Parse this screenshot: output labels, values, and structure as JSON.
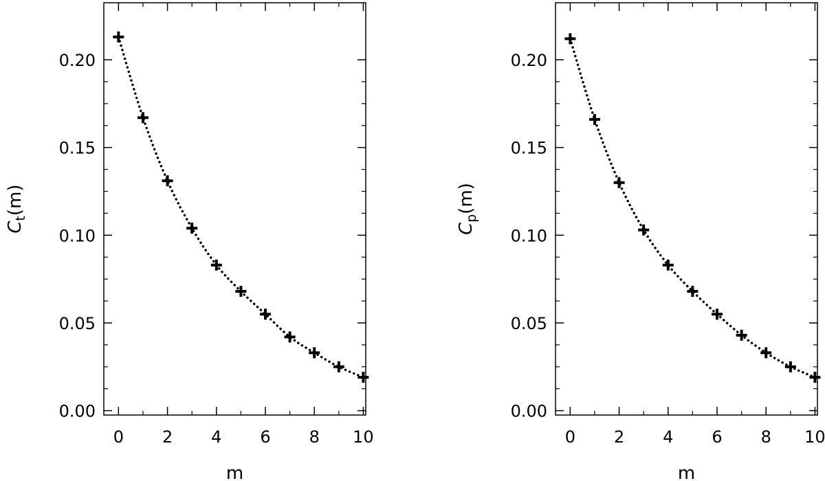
{
  "chart_data": [
    {
      "type": "scatter",
      "xlabel": "m",
      "ylabel": {
        "symbol": "C",
        "subscript": "t",
        "suffix": "(m)"
      },
      "xlim": [
        -0.6,
        10.1
      ],
      "ylim": [
        -0.0025,
        0.2325
      ],
      "xticks": [
        0,
        2,
        4,
        6,
        8,
        10
      ],
      "xtick_labels": [
        "0",
        "2",
        "4",
        "6",
        "8",
        "10"
      ],
      "yticks": [
        0,
        0.05,
        0.1,
        0.15,
        0.2
      ],
      "ytick_labels": [
        "0.00",
        "0.05",
        "0.10",
        "0.15",
        "0.20"
      ],
      "grid": false,
      "series": [
        {
          "marker": "plus",
          "line": "dotted",
          "color": "#000000",
          "x": [
            0,
            1,
            2,
            3,
            4,
            5,
            6,
            7,
            8,
            9,
            10
          ],
          "y": [
            0.213,
            0.167,
            0.131,
            0.104,
            0.083,
            0.068,
            0.055,
            0.042,
            0.033,
            0.025,
            0.019
          ]
        }
      ]
    },
    {
      "type": "scatter",
      "xlabel": "m",
      "ylabel": {
        "symbol": "C",
        "subscript": "p",
        "suffix": "(m)"
      },
      "xlim": [
        -0.6,
        10.1
      ],
      "ylim": [
        -0.0025,
        0.2325
      ],
      "xticks": [
        0,
        2,
        4,
        6,
        8,
        10
      ],
      "xtick_labels": [
        "0",
        "2",
        "4",
        "6",
        "8",
        "10"
      ],
      "yticks": [
        0,
        0.05,
        0.1,
        0.15,
        0.2
      ],
      "ytick_labels": [
        "0.00",
        "0.05",
        "0.10",
        "0.15",
        "0.20"
      ],
      "grid": false,
      "series": [
        {
          "marker": "plus",
          "line": "dotted",
          "color": "#000000",
          "x": [
            0,
            1,
            2,
            3,
            4,
            5,
            6,
            7,
            8,
            9,
            10
          ],
          "y": [
            0.212,
            0.166,
            0.13,
            0.103,
            0.083,
            0.068,
            0.055,
            0.043,
            0.033,
            0.025,
            0.019
          ]
        }
      ]
    }
  ]
}
